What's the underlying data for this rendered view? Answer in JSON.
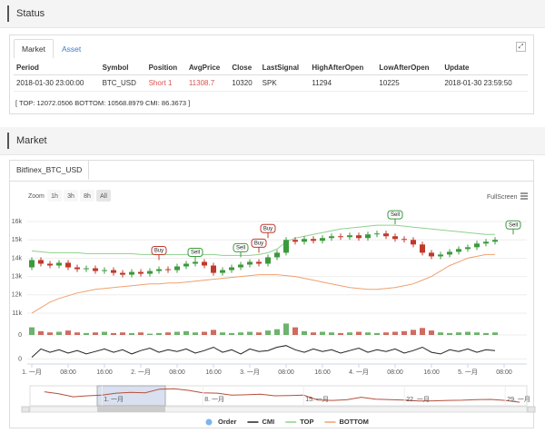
{
  "status_title": "Status",
  "status_tabs": [
    "Market",
    "Asset"
  ],
  "status_table": {
    "header": [
      "Period",
      "Symbol",
      "Position",
      "AvgPrice",
      "Close",
      "LastSignal",
      "HighAfterOpen",
      "LowAfterOpen",
      "Update"
    ],
    "rows": [
      [
        "2018-01-30 23:00:00",
        "BTC_USD",
        "Short 1",
        11308.7,
        10320,
        "SPK",
        11294,
        10225,
        "2018-01-30 23:59:50"
      ]
    ]
  },
  "status_info": "[ TOP: 12072.0506 BOTTOM: 10568.8979 CMI: 86.3673 ]",
  "market_title": "Market",
  "market_tab": "Bitfinex_BTC_USD",
  "chart_data": {
    "type": "candlestick",
    "zoom_label": "Zoom",
    "zoom_buttons": [
      "1h",
      "3h",
      "8h",
      "All"
    ],
    "fullscreen": "FullScreen",
    "up_color": "#3c9a3c",
    "down_color": "#c0392b",
    "x": [
      0,
      2,
      4,
      6,
      8,
      10,
      12,
      14,
      16,
      18,
      20,
      22,
      24,
      26,
      28,
      30,
      32,
      34,
      36,
      38,
      40,
      42,
      44,
      46,
      48,
      50,
      52,
      54,
      56,
      58,
      60,
      62,
      64,
      66,
      68,
      70,
      72,
      74,
      76,
      78,
      80,
      82,
      84,
      86,
      88,
      90,
      92,
      94,
      96,
      98,
      100,
      102
    ],
    "open": [
      13500,
      13900,
      13700,
      13600,
      13750,
      13500,
      13400,
      13450,
      13300,
      13350,
      13200,
      13100,
      13250,
      13150,
      13300,
      13400,
      13350,
      13550,
      13700,
      13800,
      13600,
      13200,
      13350,
      13500,
      13650,
      13800,
      13700,
      14050,
      14300,
      15000,
      14900,
      15050,
      14950,
      15100,
      15200,
      15150,
      15250,
      15100,
      15300,
      15350,
      15200,
      15050,
      15000,
      14750,
      14300,
      14100,
      14200,
      14350,
      14500,
      14600,
      14800,
      14900
    ],
    "high": [
      14050,
      14050,
      13850,
      13900,
      13900,
      13650,
      13600,
      13600,
      13500,
      13500,
      13350,
      13400,
      13400,
      13450,
      13550,
      13550,
      13700,
      13850,
      13950,
      13950,
      13750,
      13500,
      13650,
      13800,
      13950,
      13950,
      14200,
      14450,
      15150,
      15150,
      15200,
      15200,
      15250,
      15350,
      15350,
      15400,
      15400,
      15450,
      15500,
      15500,
      15350,
      15200,
      15150,
      14900,
      14450,
      14350,
      14500,
      14650,
      14750,
      14950,
      15050,
      15150
    ],
    "low": [
      13350,
      13550,
      13450,
      13450,
      13350,
      13250,
      13250,
      13150,
      13150,
      13050,
      12950,
      12950,
      13000,
      13000,
      13150,
      13200,
      13200,
      13400,
      13550,
      13450,
      13050,
      13050,
      13200,
      13350,
      13500,
      13550,
      13550,
      13900,
      14150,
      14750,
      14750,
      14800,
      14800,
      14950,
      15000,
      15000,
      14950,
      14950,
      15150,
      15050,
      14900,
      14850,
      14600,
      14150,
      13950,
      13950,
      14050,
      14200,
      14350,
      14450,
      14650,
      14750
    ],
    "close": [
      13900,
      13700,
      13600,
      13750,
      13500,
      13400,
      13450,
      13300,
      13350,
      13200,
      13100,
      13250,
      13150,
      13300,
      13400,
      13350,
      13550,
      13700,
      13800,
      13600,
      13200,
      13350,
      13500,
      13650,
      13800,
      13700,
      14050,
      14300,
      15000,
      14900,
      15050,
      14950,
      15100,
      15200,
      15150,
      15250,
      15100,
      15300,
      15350,
      15200,
      15050,
      15000,
      14750,
      14300,
      14100,
      14200,
      14350,
      14500,
      14600,
      14800,
      14900,
      15000
    ],
    "xlim": [
      -1,
      109
    ],
    "xticks": [
      {
        "value": 0,
        "label": "1. 一月"
      },
      {
        "value": 8,
        "label": "08:00"
      },
      {
        "value": 16,
        "label": "16:00"
      },
      {
        "value": 24,
        "label": "2. 一月"
      },
      {
        "value": 32,
        "label": "08:00"
      },
      {
        "value": 40,
        "label": "16:00"
      },
      {
        "value": 48,
        "label": "3. 一月"
      },
      {
        "value": 56,
        "label": "08:00"
      },
      {
        "value": 64,
        "label": "16:00"
      },
      {
        "value": 72,
        "label": "4. 一月"
      },
      {
        "value": 80,
        "label": "08:00"
      },
      {
        "value": 88,
        "label": "16:00"
      },
      {
        "value": 96,
        "label": "5. 一月"
      },
      {
        "value": 104,
        "label": "08:00"
      }
    ],
    "ylim": [
      10700,
      16600
    ],
    "yticks": [
      {
        "value": 11000,
        "label": "11k"
      },
      {
        "value": 12000,
        "label": "12k"
      },
      {
        "value": 13000,
        "label": "13k"
      },
      {
        "value": 14000,
        "label": "14k"
      },
      {
        "value": 15000,
        "label": "15k"
      },
      {
        "value": 16000,
        "label": "16k"
      }
    ],
    "grid": true,
    "series": [
      {
        "name": "TOP",
        "color": "#8fd18f",
        "values": [
          14400,
          14350,
          14300,
          14300,
          14300,
          14300,
          14250,
          14250,
          14250,
          14250,
          14250,
          14250,
          14200,
          14200,
          14200,
          14200,
          14200,
          14200,
          14200,
          14200,
          14200,
          14150,
          14150,
          14150,
          14150,
          14200,
          14300,
          14500,
          14900,
          15100,
          15200,
          15300,
          15400,
          15500,
          15600,
          15650,
          15700,
          15750,
          15800,
          15800,
          15800,
          15750,
          15700,
          15650,
          15600,
          15550,
          15500,
          15450,
          15400,
          15350,
          15300,
          15300
        ]
      },
      {
        "name": "BOTTOM",
        "color": "#f0a070",
        "values": [
          11000,
          11300,
          11600,
          11800,
          11950,
          12100,
          12200,
          12300,
          12350,
          12400,
          12450,
          12500,
          12550,
          12600,
          12600,
          12650,
          12650,
          12700,
          12750,
          12800,
          12850,
          12900,
          12950,
          13000,
          13050,
          13100,
          13100,
          13100,
          13050,
          13000,
          12900,
          12800,
          12700,
          12600,
          12500,
          12400,
          12350,
          12300,
          12300,
          12350,
          12400,
          12500,
          12600,
          12800,
          13000,
          13300,
          13600,
          13800,
          14000,
          14100,
          14200,
          14200
        ]
      }
    ],
    "volume": {
      "ylim": [
        0,
        100
      ],
      "yticks": [
        0
      ],
      "values": [
        60,
        30,
        20,
        25,
        35,
        20,
        15,
        20,
        25,
        15,
        20,
        15,
        20,
        10,
        15,
        20,
        25,
        30,
        20,
        25,
        40,
        20,
        15,
        20,
        25,
        20,
        35,
        45,
        90,
        60,
        30,
        20,
        25,
        20,
        15,
        20,
        25,
        20,
        15,
        20,
        25,
        30,
        40,
        55,
        35,
        20,
        15,
        20,
        25,
        20,
        15,
        20
      ]
    },
    "cmi": {
      "name": "CMI",
      "color": "#222222",
      "ylim": [
        -30,
        100
      ],
      "yticks": [
        0
      ],
      "values": [
        10,
        60,
        40,
        55,
        35,
        50,
        30,
        45,
        60,
        40,
        55,
        30,
        50,
        65,
        40,
        55,
        45,
        60,
        35,
        50,
        70,
        40,
        55,
        30,
        60,
        45,
        50,
        70,
        80,
        55,
        40,
        60,
        45,
        55,
        35,
        50,
        65,
        40,
        55,
        45,
        60,
        35,
        50,
        70,
        40,
        30,
        55,
        45,
        60,
        40,
        55,
        50
      ]
    },
    "flags": {
      "name": "Order",
      "color": "#7cb5ec",
      "points": [
        {
          "x": 28,
          "y": 13900,
          "label": "Buy",
          "color": "#c0392b"
        },
        {
          "x": 36,
          "y": 13800,
          "label": "Sell",
          "color": "#3c9a3c"
        },
        {
          "x": 46,
          "y": 14050,
          "label": "Sell",
          "color": "#3c9a3c"
        },
        {
          "x": 50,
          "y": 14300,
          "label": "Buy",
          "color": "#c0392b"
        },
        {
          "x": 52,
          "y": 15100,
          "label": "Buy",
          "color": "#c0392b"
        },
        {
          "x": 80,
          "y": 15850,
          "label": "Sell",
          "color": "#3c9a3c"
        },
        {
          "x": 106,
          "y": 15300,
          "label": "Sell",
          "color": "#3c9a3c"
        }
      ]
    },
    "navigator": {
      "color": "#b5503c",
      "xlim": [
        -4,
        30.5
      ],
      "ylim": [
        9000,
        18000
      ],
      "x": [
        -3,
        -2,
        -1,
        0,
        1,
        2,
        3,
        4,
        5,
        6,
        7,
        8,
        9,
        10,
        11,
        12,
        13,
        14,
        15,
        16,
        17,
        18,
        19,
        20,
        21,
        22,
        23,
        24,
        25,
        26,
        27,
        28,
        29,
        30
      ],
      "values": [
        15500,
        14500,
        13000,
        13500,
        13800,
        14800,
        15200,
        15000,
        16800,
        17000,
        16200,
        15000,
        14800,
        13800,
        14000,
        14300,
        13500,
        13600,
        13800,
        11400,
        11200,
        11500,
        12800,
        11800,
        11600,
        11400,
        10900,
        11000,
        11200,
        11300,
        11600,
        11700,
        11200,
        10300
      ],
      "xticks": [
        {
          "value": 1,
          "label": "1. 一月"
        },
        {
          "value": 8,
          "label": "8. 一月"
        },
        {
          "value": 15,
          "label": "15. 一月"
        },
        {
          "value": 22,
          "label": "22. 一月"
        },
        {
          "value": 29,
          "label": "29. 一月"
        }
      ]
    }
  }
}
